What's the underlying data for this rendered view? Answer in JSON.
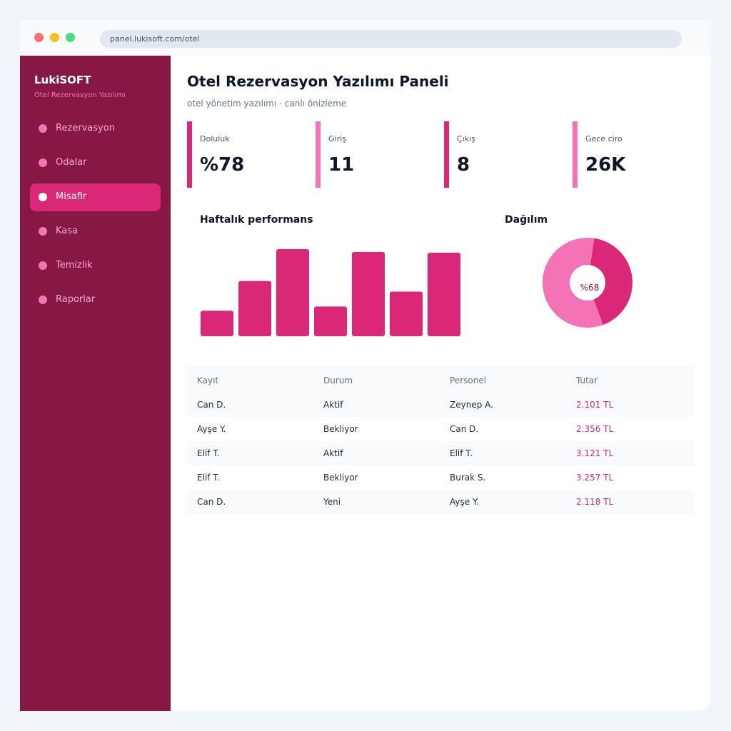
{
  "browser": {
    "url": "panel.lukisoft.com/otel"
  },
  "sidebar": {
    "brand": "LukiSOFT",
    "brand_sub": "Otel Rezervasyon Yazılımı",
    "items": [
      {
        "label": "Rezervasyon",
        "active": false
      },
      {
        "label": "Odalar",
        "active": false
      },
      {
        "label": "Misafir",
        "active": true
      },
      {
        "label": "Kasa",
        "active": false
      },
      {
        "label": "Temizlik",
        "active": false
      },
      {
        "label": "Raporlar",
        "active": false
      }
    ]
  },
  "header": {
    "title": "Otel Rezervasyon Yazılımı Paneli",
    "subtitle": "otel yönetim yazılımı · canlı önizleme"
  },
  "kpis": [
    {
      "label": "Doluluk",
      "value": "%78"
    },
    {
      "label": "Giriş",
      "value": "11"
    },
    {
      "label": "Çıkış",
      "value": "8"
    },
    {
      "label": "Gece ciro",
      "value": "26K"
    }
  ],
  "colors": {
    "accent": "#db2777",
    "accent_light": "#f472b6",
    "sidebar": "#861843"
  },
  "chart_data": [
    {
      "type": "bar",
      "title": "Haftalık performans",
      "categories": [
        "",
        "",
        "",
        "",
        "",
        "",
        ""
      ],
      "values": [
        36,
        78,
        123,
        42,
        119,
        63,
        118
      ],
      "ylim": [
        0,
        125
      ],
      "grid": false
    },
    {
      "type": "pie",
      "title": "Dağılım",
      "center_label": "%68",
      "values": [
        42,
        58
      ],
      "colors": [
        "#db2777",
        "#f472b6"
      ]
    }
  ],
  "table": {
    "headers": [
      "Kayıt",
      "Durum",
      "Personel",
      "Tutar"
    ],
    "rows": [
      [
        "Can D.",
        "Aktif",
        "Zeynep A.",
        "2.101 TL"
      ],
      [
        "Ayşe Y.",
        "Bekliyor",
        "Can D.",
        "2.356 TL"
      ],
      [
        "Elif T.",
        "Aktif",
        "Elif T.",
        "3.121 TL"
      ],
      [
        "Elif T.",
        "Bekliyor",
        "Burak S.",
        "3.257 TL"
      ],
      [
        "Can D.",
        "Yeni",
        "Ayşe Y.",
        "2.118 TL"
      ]
    ]
  }
}
